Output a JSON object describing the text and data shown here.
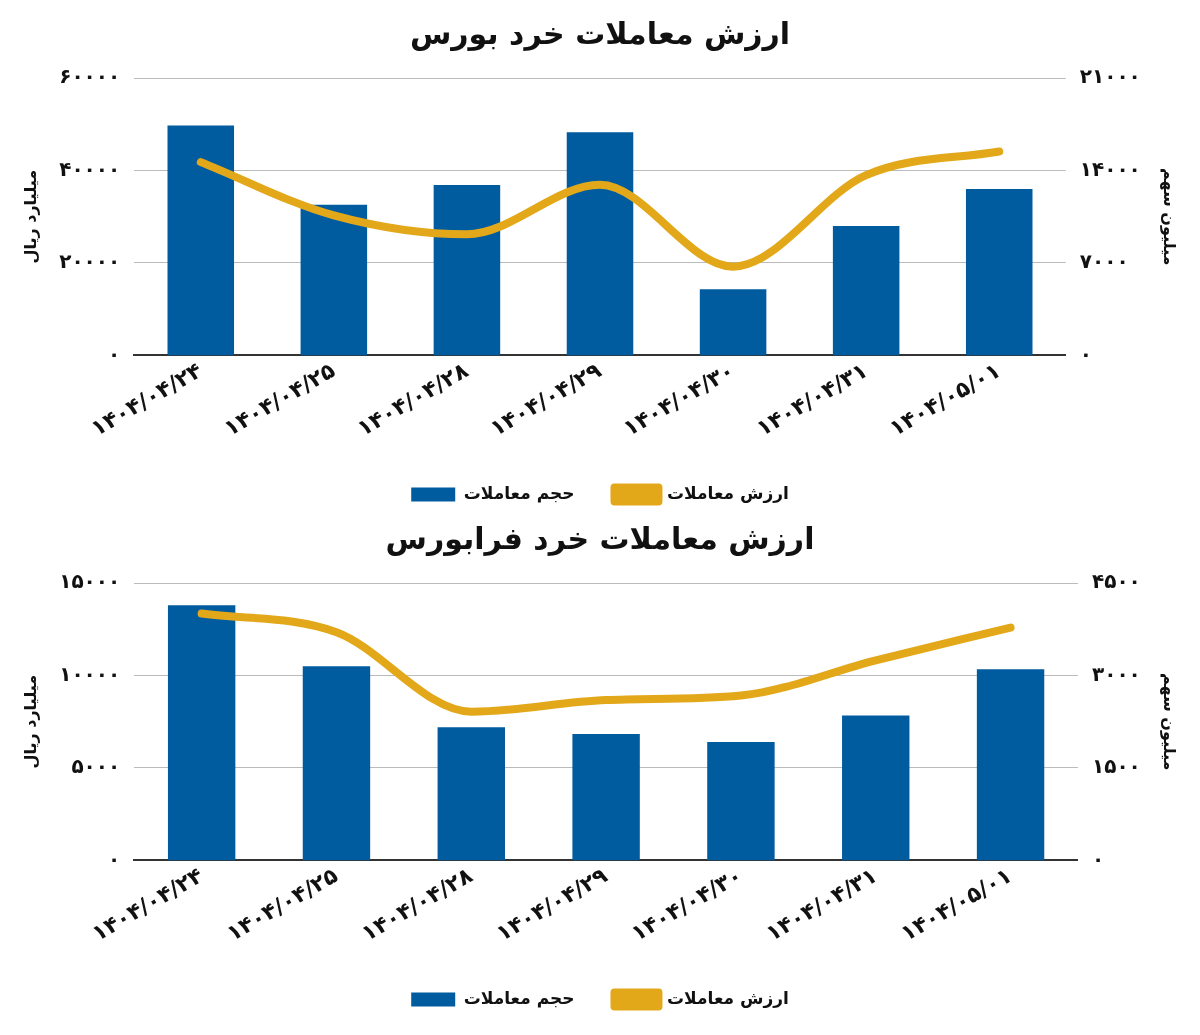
{
  "chart_data": [
    {
      "type": "bar",
      "title": "ارزش معاملات خرد بورس",
      "ylabel": "میلیارد ریال",
      "y2label": "میلیون سهم",
      "categories": [
        "۱۴۰۴/۰۴/۲۴",
        "۱۴۰۴/۰۴/۲۵",
        "۱۴۰۴/۰۴/۲۸",
        "۱۴۰۴/۰۴/۲۹",
        "۱۴۰۴/۰۴/۳۰",
        "۱۴۰۴/۰۴/۳۱",
        "۱۴۰۴/۰۵/۰۱"
      ],
      "series": [
        {
          "name": "حجم معاملات",
          "axis": "y2",
          "color": "#005b9f",
          "values": [
            17400,
            11400,
            12900,
            16900,
            5000,
            9800,
            12600
          ]
        },
        {
          "name": "ارزش معاملات",
          "type": "line",
          "axis": "y",
          "color": "#e3a81a",
          "values": [
            41800,
            30300,
            26200,
            36900,
            19200,
            39000,
            44100
          ]
        }
      ],
      "ylim": [
        0,
        60000
      ],
      "yticks": [
        {
          "value": 0,
          "label": "۰"
        },
        {
          "value": 20000,
          "label": "۲۰۰۰۰"
        },
        {
          "value": 40000,
          "label": "۴۰۰۰۰"
        },
        {
          "value": 60000,
          "label": "۶۰۰۰۰"
        }
      ],
      "y2lim": [
        0,
        21000
      ],
      "y2ticks": [
        {
          "value": 0,
          "label": "۰"
        },
        {
          "value": 7000,
          "label": "۷۰۰۰"
        },
        {
          "value": 14000,
          "label": "۱۴۰۰۰"
        },
        {
          "value": 21000,
          "label": "۲۱۰۰۰"
        }
      ],
      "grid": "y",
      "legend": "bottom",
      "marker": "none"
    },
    {
      "type": "bar",
      "title": "ارزش معاملات خرد فرابورس",
      "ylabel": "میلیارد ریال",
      "y2label": "میلیون سهم",
      "categories": [
        "۱۴۰۴/۰۴/۲۴",
        "۱۴۰۴/۰۴/۲۵",
        "۱۴۰۴/۰۴/۲۸",
        "۱۴۰۴/۰۴/۲۹",
        "۱۴۰۴/۰۴/۳۰",
        "۱۴۰۴/۰۴/۳۱",
        "۱۴۰۴/۰۵/۰۱"
      ],
      "series": [
        {
          "name": "حجم معاملات",
          "axis": "y2",
          "color": "#005b9f",
          "values": [
            4140,
            3150,
            2160,
            2050,
            1920,
            2350,
            3100
          ]
        },
        {
          "name": "ارزش معاملات",
          "type": "line",
          "axis": "y",
          "color": "#e3a81a",
          "values": [
            13350,
            12340,
            8040,
            8670,
            8920,
            10820,
            12590
          ]
        }
      ],
      "ylim": [
        0,
        15000
      ],
      "yticks": [
        {
          "value": 0,
          "label": "۰"
        },
        {
          "value": 5000,
          "label": "۵۰۰۰"
        },
        {
          "value": 10000,
          "label": "۱۰۰۰۰"
        },
        {
          "value": 15000,
          "label": "۱۵۰۰۰"
        }
      ],
      "y2lim": [
        0,
        4500
      ],
      "y2ticks": [
        {
          "value": 0,
          "label": "۰"
        },
        {
          "value": 1500,
          "label": "۱۵۰۰"
        },
        {
          "value": 3000,
          "label": "۳۰۰۰"
        },
        {
          "value": 4500,
          "label": "۴۵۰۰"
        }
      ],
      "grid": "y",
      "legend": "bottom",
      "marker": "none"
    }
  ]
}
